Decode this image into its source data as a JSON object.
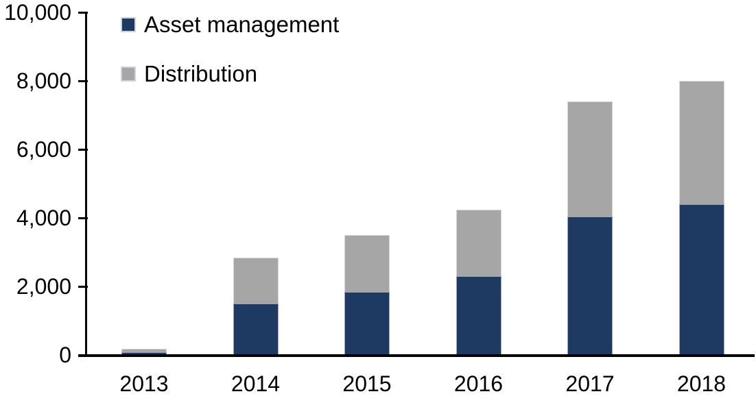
{
  "chart_data": {
    "type": "bar",
    "stacked": true,
    "title": "",
    "xlabel": "",
    "ylabel": "",
    "categories": [
      "2013",
      "2014",
      "2015",
      "2016",
      "2017",
      "2018"
    ],
    "series": [
      {
        "name": "Asset management",
        "color": "#1F3A62",
        "values": [
          75,
          1500,
          1850,
          2300,
          4050,
          4400
        ]
      },
      {
        "name": "Distribution",
        "color": "#A6A6A6",
        "values": [
          100,
          1350,
          1650,
          1950,
          3350,
          3600
        ]
      }
    ],
    "totals": [
      175,
      2850,
      3500,
      4250,
      7400,
      8000
    ],
    "ylim": [
      0,
      10000
    ],
    "ytick_interval": 2000,
    "yticks": [
      0,
      2000,
      4000,
      6000,
      8000,
      10000
    ],
    "ytick_labels": [
      "0",
      "2,000",
      "4,000",
      "6,000",
      "8,000",
      "10,000"
    ],
    "grid": false,
    "legend_position": "top-left-inside",
    "axis_color": "#000000",
    "text_color": "#000000",
    "background_color": "#FFFFFF"
  },
  "legend": {
    "items": [
      {
        "label": "Asset management",
        "color": "#1F3A62"
      },
      {
        "label": "Distribution",
        "color": "#A6A6A6"
      }
    ]
  }
}
